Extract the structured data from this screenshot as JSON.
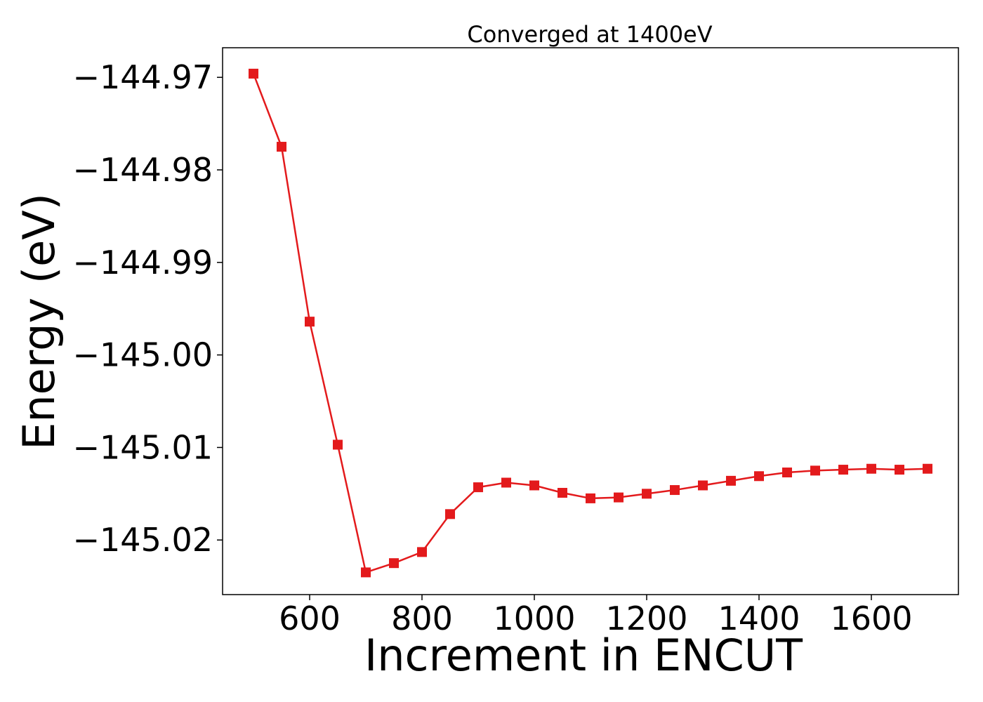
{
  "chart_data": {
    "type": "line",
    "title": "Converged at 1400eV",
    "xlabel": "Increment in ENCUT",
    "ylabel": "Energy (eV)",
    "xlim": [
      445,
      1755
    ],
    "ylim": [
      -145.0259,
      -144.9668
    ],
    "xticks": [
      600,
      800,
      1000,
      1200,
      1400,
      1600
    ],
    "xtick_labels": [
      "600",
      "800",
      "1000",
      "1200",
      "1400",
      "1600"
    ],
    "yticks": [
      -144.97,
      -144.98,
      -144.99,
      -145.0,
      -145.01,
      -145.02
    ],
    "ytick_labels": [
      "−144.97",
      "−144.98",
      "−144.99",
      "−145.00",
      "−145.01",
      "−145.02"
    ],
    "grid": false,
    "legend": "none",
    "series": [
      {
        "color": "#e31a1c",
        "marker": "square",
        "x": [
          500,
          550,
          600,
          650,
          700,
          750,
          800,
          850,
          900,
          950,
          1000,
          1050,
          1100,
          1150,
          1200,
          1250,
          1300,
          1350,
          1400,
          1450,
          1500,
          1550,
          1600,
          1650,
          1700
        ],
        "y": [
          -144.9696,
          -144.9775,
          -144.9964,
          -145.0097,
          -145.0235,
          -145.0225,
          -145.0213,
          -145.0172,
          -145.0143,
          -145.0138,
          -145.0141,
          -145.0149,
          -145.0155,
          -145.0154,
          -145.015,
          -145.0146,
          -145.0141,
          -145.0136,
          -145.0131,
          -145.0127,
          -145.0125,
          -145.0124,
          -145.0123,
          -145.0124,
          -145.0123
        ]
      }
    ]
  }
}
